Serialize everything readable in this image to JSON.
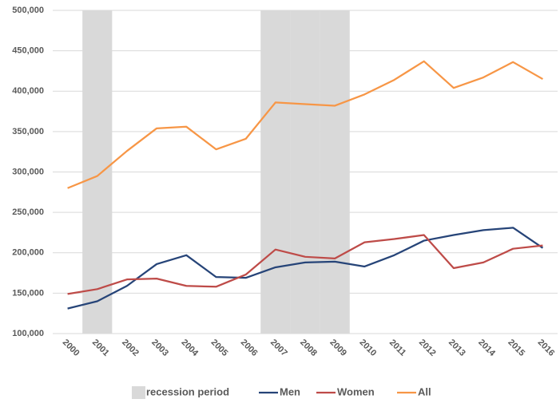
{
  "chart_data": {
    "type": "line",
    "categories": [
      "2000",
      "2001",
      "2002",
      "2003",
      "2004",
      "2005",
      "2006",
      "2007",
      "2008",
      "2009",
      "2010",
      "2011",
      "2012",
      "2013",
      "2014",
      "2015",
      "2016"
    ],
    "series": [
      {
        "name": "recession period",
        "type": "bar",
        "color": "#d9d9d9",
        "values": [
          null,
          500000,
          null,
          null,
          null,
          null,
          null,
          500000,
          500000,
          500000,
          null,
          null,
          null,
          null,
          null,
          null,
          null
        ]
      },
      {
        "name": "Men",
        "color": "#264478",
        "values": [
          131000,
          140000,
          159000,
          186000,
          197000,
          170000,
          169000,
          182000,
          188000,
          189000,
          183000,
          197000,
          215000,
          222000,
          228000,
          231000,
          206000
        ]
      },
      {
        "name": "Women",
        "color": "#be4b48",
        "values": [
          149000,
          155000,
          167000,
          168000,
          159000,
          158000,
          173000,
          204000,
          195000,
          193000,
          213000,
          217000,
          222000,
          181000,
          188000,
          205000,
          209000
        ]
      },
      {
        "name": "All",
        "color": "#f79646",
        "values": [
          280000,
          295000,
          326000,
          354000,
          356000,
          328000,
          341000,
          386000,
          384000,
          382000,
          396000,
          414000,
          437000,
          404000,
          417000,
          436000,
          415000
        ]
      }
    ],
    "ylim": [
      100000,
      500000
    ],
    "yticks": [
      {
        "value": 100000,
        "label": "100,000"
      },
      {
        "value": 150000,
        "label": "150,000"
      },
      {
        "value": 200000,
        "label": "200,000"
      },
      {
        "value": 250000,
        "label": "250,000"
      },
      {
        "value": 300000,
        "label": "300,000"
      },
      {
        "value": 350000,
        "label": "350,000"
      },
      {
        "value": 400000,
        "label": "400,000"
      },
      {
        "value": 450000,
        "label": "450,000"
      },
      {
        "value": 500000,
        "label": "500,000"
      }
    ],
    "grid": true,
    "legend": "bottom"
  }
}
